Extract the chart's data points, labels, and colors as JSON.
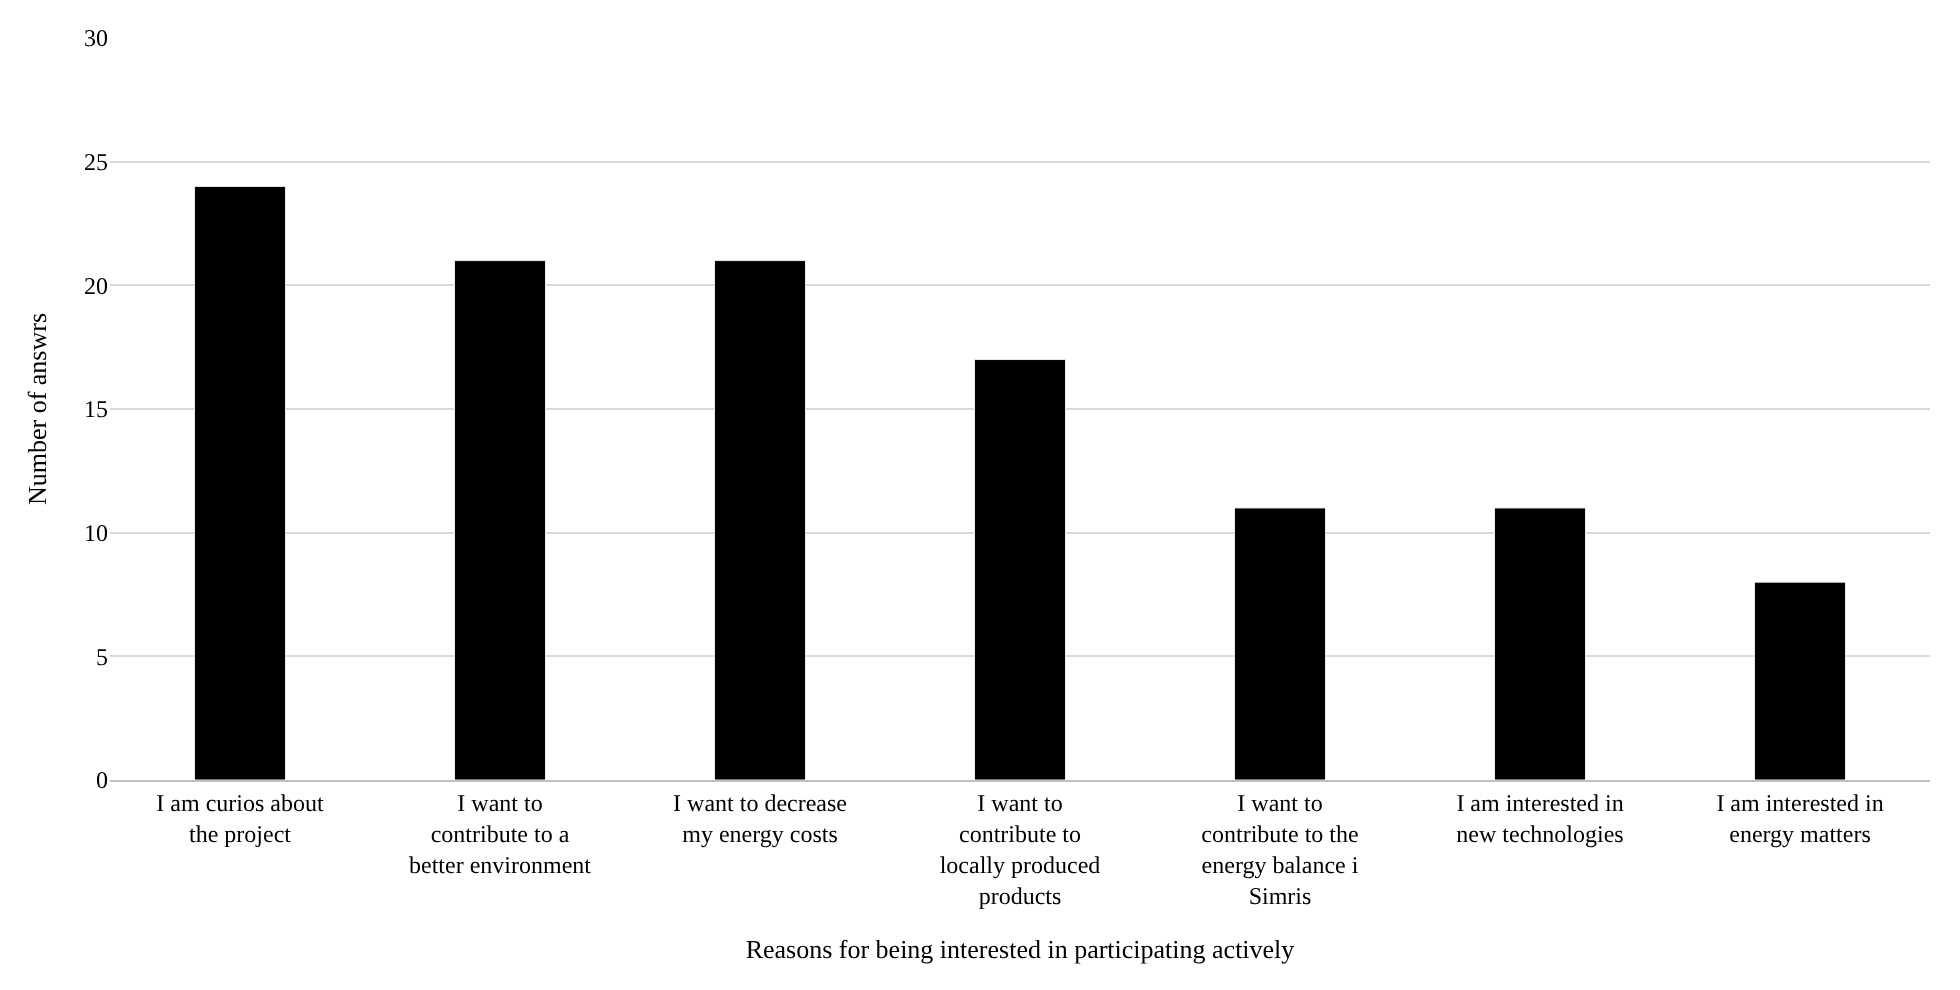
{
  "chart_data": {
    "type": "bar",
    "xlabel": "Reasons for being interested in participating actively",
    "ylabel": "Number of answrs",
    "categories": [
      "I am curios about the project",
      "I want to contribute to a better environment",
      "I want to decrease my energy costs",
      "I want to contribute to locally produced products",
      "I want to contribute to the energy balance i Simris",
      "I am interested in new technologies",
      "I am interested in energy matters"
    ],
    "values": [
      24,
      21,
      21,
      17,
      11,
      11,
      8
    ],
    "color": "#000000",
    "ylim": [
      0,
      30
    ],
    "yticks": [
      0,
      5,
      10,
      15,
      20,
      25,
      30
    ],
    "grid": "y",
    "legend": false
  }
}
